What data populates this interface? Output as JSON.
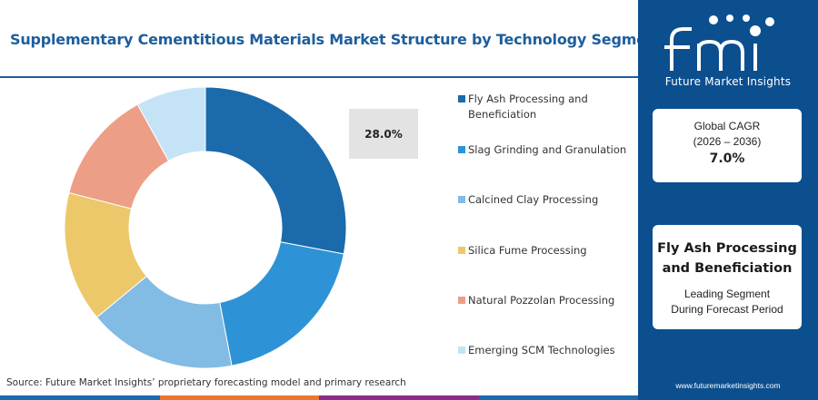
{
  "title": "Supplementary Cementitious Materials Market Structure by Technology Segment",
  "callout": "28.0%",
  "source": "Source: Future Market Insights’ proprietary forecasting model and primary research",
  "chart_data": {
    "type": "pie",
    "donut": true,
    "title": "Supplementary Cementitious Materials Market Structure by Technology Segment",
    "categories": [
      "Fly Ash Processing and Beneficiation",
      "Slag Grinding and Granulation",
      "Calcined Clay Processing",
      "Silica Fume Processing",
      "Natural Pozzolan Processing",
      "Emerging SCM Technologies"
    ],
    "values": [
      28.0,
      19.0,
      17.0,
      15.0,
      13.0,
      8.0
    ],
    "colors": [
      "#1b6aab",
      "#2e93d6",
      "#82bbe3",
      "#ecc86b",
      "#ec9f86",
      "#c5e3f6"
    ],
    "legend_position": "right",
    "data_labels": [
      "28.0%"
    ]
  },
  "legend": [
    {
      "label": "Fly Ash Processing and Beneficiation",
      "color": "#1b6aab"
    },
    {
      "label": "Slag Grinding and Granulation",
      "color": "#2e93d6"
    },
    {
      "label": "Calcined Clay Processing",
      "color": "#82bbe3"
    },
    {
      "label": "Silica Fume Processing",
      "color": "#ecc86b"
    },
    {
      "label": "Natural Pozzolan Processing",
      "color": "#ec9f86"
    },
    {
      "label": "Emerging SCM Technologies",
      "color": "#c5e3f6"
    }
  ],
  "sidebar": {
    "logo_text": "fmi",
    "logo_tagline": "Future Market Insights",
    "cagr_label": "Global CAGR",
    "cagr_period": "(2026 – 2036)",
    "cagr_value": "7.0%",
    "leading_segment": "Fly Ash Processing and Beneficiation",
    "leading_desc_1": "Leading Segment",
    "leading_desc_2": "During Forecast Period",
    "url": "www.futuremarketinsights.com"
  },
  "bottom_bar_colors": [
    "#1b6aab",
    "#e8782f",
    "#8a2c88",
    "#1b6aab"
  ]
}
